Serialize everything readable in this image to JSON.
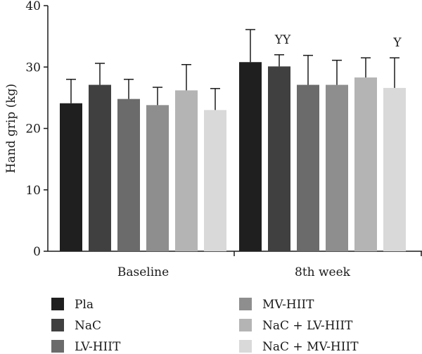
{
  "chart_data": {
    "type": "bar",
    "ylabel": "Hand grip (kg)",
    "ylim": [
      0,
      40
    ],
    "yticks": [
      0,
      10,
      20,
      30,
      40
    ],
    "categories": [
      "Baseline",
      "8th week"
    ],
    "series": [
      {
        "name": "Pla",
        "color": "#1f1f1f",
        "values": [
          24.1,
          30.8
        ],
        "errors": [
          3.9,
          5.3
        ]
      },
      {
        "name": "NaC",
        "color": "#404040",
        "values": [
          27.1,
          30.1
        ],
        "errors": [
          3.5,
          1.9
        ]
      },
      {
        "name": "LV-HIIT",
        "color": "#6b6b6b",
        "values": [
          24.8,
          27.1
        ],
        "errors": [
          3.2,
          4.8
        ]
      },
      {
        "name": "MV-HIIT",
        "color": "#8e8e8e",
        "values": [
          23.8,
          27.1
        ],
        "errors": [
          2.9,
          4.0
        ]
      },
      {
        "name": "NaC + LV-HIIT",
        "color": "#b4b4b4",
        "values": [
          26.2,
          28.3
        ],
        "errors": [
          4.2,
          3.2
        ]
      },
      {
        "name": "NaC + MV-HIIT",
        "color": "#d9d9d9",
        "values": [
          23.0,
          26.6
        ],
        "errors": [
          3.5,
          4.9
        ]
      }
    ],
    "annotations": [
      {
        "text": "YY",
        "category": 1,
        "series": 1
      },
      {
        "text": "Y",
        "category": 1,
        "series": 5
      }
    ],
    "grid": false,
    "legend_position": "bottom"
  }
}
